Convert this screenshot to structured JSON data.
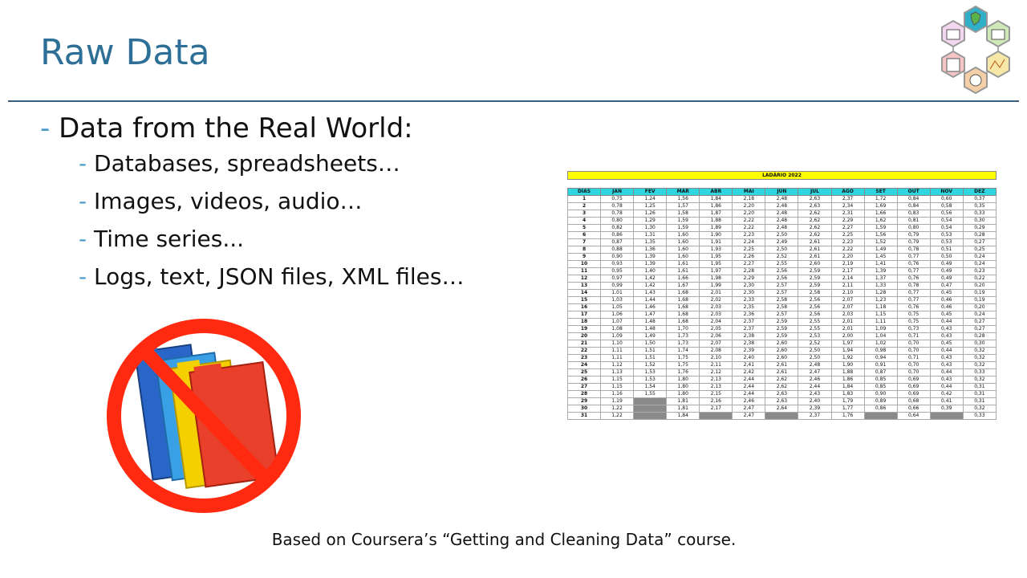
{
  "slide": {
    "title": "Raw Data",
    "footer": "Based on Coursera’s “Getting and Cleaning Data” course."
  },
  "bullets": {
    "main": "Data from the Real World:",
    "dash": "-",
    "sub": [
      "Databases, spreadsheets…",
      "Images, videos, audio…",
      "Time series...",
      "Logs, text, JSON files, XML files…"
    ]
  },
  "spreadsheet": {
    "banner": "LADÁRIO 2022",
    "headers": [
      "DIAS",
      "JAN",
      "FEV",
      "MAR",
      "ABR",
      "MAI",
      "JUN",
      "JUL",
      "AGO",
      "SET",
      "OUT",
      "NOV",
      "DEZ"
    ],
    "rows": [
      [
        "1",
        "0,75",
        "1,24",
        "1,56",
        "1,84",
        "2,18",
        "2,48",
        "2,63",
        "2,37",
        "1,72",
        "0,84",
        "0,60",
        "0,37"
      ],
      [
        "2",
        "0,78",
        "1,25",
        "1,57",
        "1,86",
        "2,20",
        "2,48",
        "2,63",
        "2,34",
        "1,69",
        "0,84",
        "0,58",
        "0,35"
      ],
      [
        "3",
        "0,78",
        "1,26",
        "1,58",
        "1,87",
        "2,20",
        "2,48",
        "2,62",
        "2,31",
        "1,66",
        "0,83",
        "0,56",
        "0,33"
      ],
      [
        "4",
        "0,80",
        "1,29",
        "1,59",
        "1,88",
        "2,22",
        "2,48",
        "2,62",
        "2,29",
        "1,62",
        "0,81",
        "0,54",
        "0,30"
      ],
      [
        "5",
        "0,82",
        "1,30",
        "1,59",
        "1,89",
        "2,22",
        "2,48",
        "2,62",
        "2,27",
        "1,59",
        "0,80",
        "0,54",
        "0,29"
      ],
      [
        "6",
        "0,86",
        "1,31",
        "1,60",
        "1,90",
        "2,23",
        "2,50",
        "2,62",
        "2,25",
        "1,56",
        "0,79",
        "0,53",
        "0,28"
      ],
      [
        "7",
        "0,87",
        "1,35",
        "1,60",
        "1,91",
        "2,24",
        "2,49",
        "2,61",
        "2,23",
        "1,52",
        "0,79",
        "0,53",
        "0,27"
      ],
      [
        "8",
        "0,88",
        "1,36",
        "1,60",
        "1,93",
        "2,25",
        "2,50",
        "2,61",
        "2,22",
        "1,49",
        "0,78",
        "0,51",
        "0,25"
      ],
      [
        "9",
        "0,90",
        "1,39",
        "1,60",
        "1,95",
        "2,26",
        "2,52",
        "2,61",
        "2,20",
        "1,45",
        "0,77",
        "0,50",
        "0,24"
      ],
      [
        "10",
        "0,93",
        "1,39",
        "1,61",
        "1,95",
        "2,27",
        "2,55",
        "2,60",
        "2,19",
        "1,41",
        "0,76",
        "0,49",
        "0,24"
      ],
      [
        "11",
        "0,95",
        "1,40",
        "1,61",
        "1,97",
        "2,28",
        "2,56",
        "2,59",
        "2,17",
        "1,39",
        "0,77",
        "0,49",
        "0,23"
      ],
      [
        "12",
        "0,97",
        "1,42",
        "1,66",
        "1,98",
        "2,29",
        "2,56",
        "2,59",
        "2,14",
        "1,37",
        "0,76",
        "0,49",
        "0,22"
      ],
      [
        "13",
        "0,99",
        "1,42",
        "1,67",
        "1,99",
        "2,30",
        "2,57",
        "2,59",
        "2,11",
        "1,33",
        "0,78",
        "0,47",
        "0,20"
      ],
      [
        "14",
        "1,01",
        "1,43",
        "1,68",
        "2,01",
        "2,30",
        "2,57",
        "2,58",
        "2,10",
        "1,28",
        "0,77",
        "0,45",
        "0,19"
      ],
      [
        "15",
        "1,03",
        "1,44",
        "1,68",
        "2,02",
        "2,33",
        "2,58",
        "2,56",
        "2,07",
        "1,23",
        "0,77",
        "0,46",
        "0,19"
      ],
      [
        "16",
        "1,05",
        "1,46",
        "1,68",
        "2,03",
        "2,35",
        "2,58",
        "2,56",
        "2,07",
        "1,18",
        "0,76",
        "0,46",
        "0,20"
      ],
      [
        "17",
        "1,06",
        "1,47",
        "1,68",
        "2,03",
        "2,36",
        "2,57",
        "2,56",
        "2,03",
        "1,15",
        "0,75",
        "0,45",
        "0,24"
      ],
      [
        "18",
        "1,07",
        "1,48",
        "1,68",
        "2,04",
        "2,37",
        "2,59",
        "2,55",
        "2,01",
        "1,11",
        "0,75",
        "0,44",
        "0,27"
      ],
      [
        "19",
        "1,08",
        "1,48",
        "1,70",
        "2,05",
        "2,37",
        "2,59",
        "2,55",
        "2,01",
        "1,09",
        "0,73",
        "0,43",
        "0,27"
      ],
      [
        "20",
        "1,09",
        "1,49",
        "1,73",
        "2,06",
        "2,38",
        "2,59",
        "2,53",
        "2,00",
        "1,04",
        "0,71",
        "0,43",
        "0,28"
      ],
      [
        "21",
        "1,10",
        "1,50",
        "1,73",
        "2,07",
        "2,38",
        "2,60",
        "2,52",
        "1,97",
        "1,02",
        "0,70",
        "0,45",
        "0,30"
      ],
      [
        "22",
        "1,11",
        "1,51",
        "1,74",
        "2,08",
        "2,39",
        "2,60",
        "2,50",
        "1,94",
        "0,98",
        "0,70",
        "0,44",
        "0,32"
      ],
      [
        "23",
        "1,11",
        "1,51",
        "1,75",
        "2,10",
        "2,40",
        "2,60",
        "2,50",
        "1,92",
        "0,94",
        "0,71",
        "0,43",
        "0,32"
      ],
      [
        "24",
        "1,12",
        "1,52",
        "1,75",
        "2,11",
        "2,41",
        "2,61",
        "2,48",
        "1,90",
        "0,91",
        "0,70",
        "0,43",
        "0,32"
      ],
      [
        "25",
        "1,13",
        "1,53",
        "1,76",
        "2,12",
        "2,42",
        "2,61",
        "2,47",
        "1,88",
        "0,87",
        "0,70",
        "0,44",
        "0,33"
      ],
      [
        "26",
        "1,15",
        "1,53",
        "1,80",
        "2,13",
        "2,44",
        "2,62",
        "2,46",
        "1,86",
        "0,85",
        "0,69",
        "0,43",
        "0,32"
      ],
      [
        "27",
        "1,15",
        "1,54",
        "1,80",
        "2,13",
        "2,44",
        "2,62",
        "2,44",
        "1,84",
        "0,85",
        "0,69",
        "0,44",
        "0,31"
      ],
      [
        "28",
        "1,16",
        "1,55",
        "1,80",
        "2,15",
        "2,44",
        "2,63",
        "2,43",
        "1,83",
        "0,90",
        "0,69",
        "0,42",
        "0,31"
      ],
      [
        "29",
        "1,19",
        "",
        "1,81",
        "2,16",
        "2,46",
        "2,63",
        "2,40",
        "1,79",
        "0,89",
        "0,68",
        "0,41",
        "0,31"
      ],
      [
        "30",
        "1,22",
        "",
        "1,81",
        "2,17",
        "2,47",
        "2,64",
        "2,39",
        "1,77",
        "0,86",
        "0,66",
        "0,39",
        "0,32"
      ],
      [
        "31",
        "1,22",
        "",
        "1,84",
        "",
        "2,47",
        "",
        "2,37",
        "1,76",
        "",
        "0,64",
        "",
        "0,33"
      ]
    ]
  }
}
